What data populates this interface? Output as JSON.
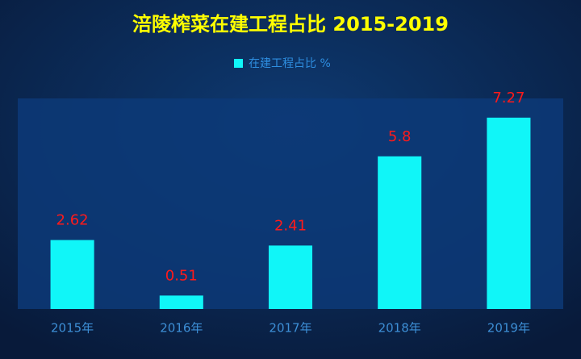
{
  "chart_data": {
    "type": "bar",
    "title": "涪陵榨菜在建工程占比 2015-2019",
    "categories": [
      "2015年",
      "2016年",
      "2017年",
      "2018年",
      "2019年"
    ],
    "series": [
      {
        "name": "在建工程占比 %",
        "color": "#10f6f8",
        "values": [
          2.62,
          0.51,
          2.41,
          5.8,
          7.27
        ]
      }
    ],
    "ylim": [
      0,
      8
    ],
    "grid": false,
    "legend": "top"
  }
}
